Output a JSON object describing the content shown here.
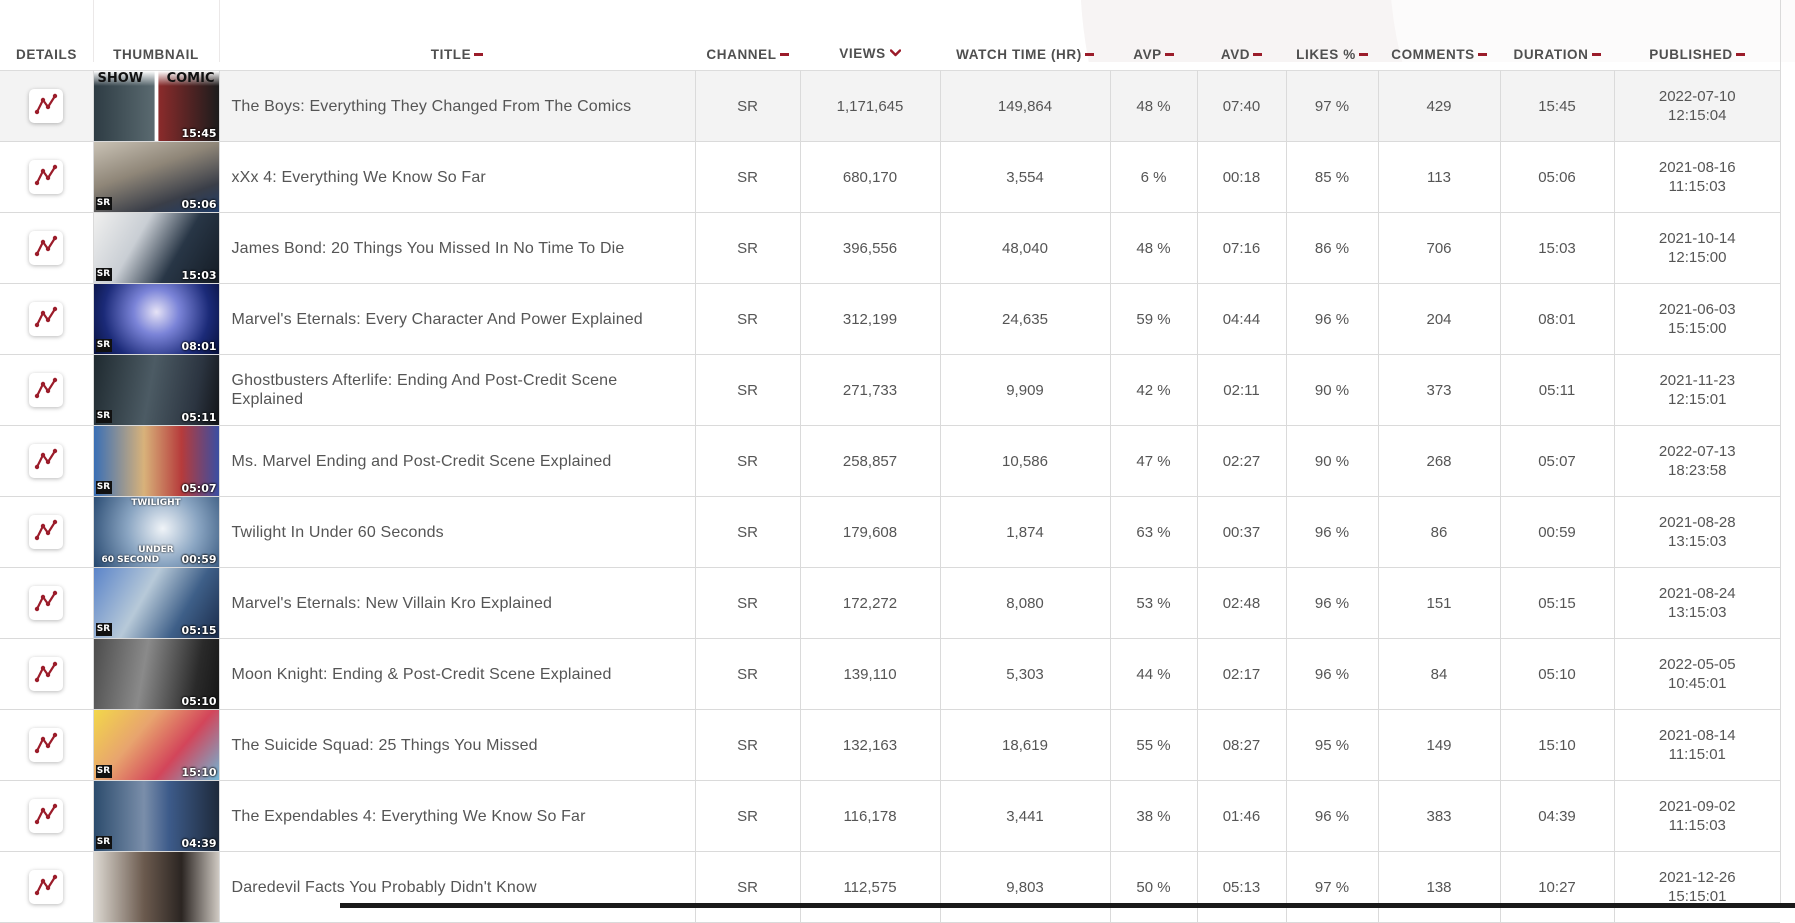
{
  "colors": {
    "accent": "#9b1c2a",
    "row_highlight": "#f3f3f3",
    "border": "#dadada"
  },
  "columns": {
    "details": "DETAILS",
    "thumbnail": "THUMBNAIL",
    "title": "TITLE",
    "channel": "CHANNEL",
    "views": "VIEWS",
    "watch_time": "WATCH TIME (HR)",
    "avp": "AVP",
    "avd": "AVD",
    "likes": "LIKES %",
    "comments": "COMMENTS",
    "duration": "DURATION",
    "published": "PUBLISHED"
  },
  "sort": {
    "column": "views",
    "direction": "descending",
    "icon": "chevron-down-icon"
  },
  "details_icon": "trend-chart-icon",
  "rows": [
    {
      "title": "The Boys: Everything They Changed From The Comics",
      "channel": "SR",
      "views": "1,171,645",
      "watch_time": "149,864",
      "avp": "48 %",
      "avd": "07:40",
      "likes": "97 %",
      "comments": "429",
      "duration": "15:45",
      "published_date": "2022-07-10",
      "published_time": "12:15:04",
      "thumb": {
        "dur": "15:45",
        "text_left": "SHOW",
        "text_right": "COMIC",
        "sr": "",
        "mid": ""
      }
    },
    {
      "title": "xXx 4: Everything We Know So Far",
      "channel": "SR",
      "views": "680,170",
      "watch_time": "3,554",
      "avp": "6 %",
      "avd": "00:18",
      "likes": "85 %",
      "comments": "113",
      "duration": "05:06",
      "published_date": "2021-08-16",
      "published_time": "11:15:03",
      "thumb": {
        "dur": "05:06",
        "text_left": "",
        "text_right": "",
        "sr": "SR",
        "mid": ""
      }
    },
    {
      "title": "James Bond: 20 Things You Missed In No Time To Die",
      "channel": "SR",
      "views": "396,556",
      "watch_time": "48,040",
      "avp": "48 %",
      "avd": "07:16",
      "likes": "86 %",
      "comments": "706",
      "duration": "15:03",
      "published_date": "2021-10-14",
      "published_time": "12:15:00",
      "thumb": {
        "dur": "15:03",
        "text_left": "",
        "text_right": "",
        "sr": "SR",
        "mid": ""
      }
    },
    {
      "title": "Marvel's Eternals: Every Character And Power Explained",
      "channel": "SR",
      "views": "312,199",
      "watch_time": "24,635",
      "avp": "59 %",
      "avd": "04:44",
      "likes": "96 %",
      "comments": "204",
      "duration": "08:01",
      "published_date": "2021-06-03",
      "published_time": "15:15:00",
      "thumb": {
        "dur": "08:01",
        "text_left": "",
        "text_right": "",
        "sr": "SR",
        "mid": ""
      }
    },
    {
      "title": "Ghostbusters Afterlife: Ending And Post-Credit Scene Explained",
      "channel": "SR",
      "views": "271,733",
      "watch_time": "9,909",
      "avp": "42 %",
      "avd": "02:11",
      "likes": "90 %",
      "comments": "373",
      "duration": "05:11",
      "published_date": "2021-11-23",
      "published_time": "12:15:01",
      "thumb": {
        "dur": "05:11",
        "text_left": "",
        "text_right": "",
        "sr": "SR",
        "mid": ""
      }
    },
    {
      "title": "Ms. Marvel Ending and Post-Credit Scene Explained",
      "channel": "SR",
      "views": "258,857",
      "watch_time": "10,586",
      "avp": "47 %",
      "avd": "02:27",
      "likes": "90 %",
      "comments": "268",
      "duration": "05:07",
      "published_date": "2022-07-13",
      "published_time": "18:23:58",
      "thumb": {
        "dur": "05:07",
        "text_left": "",
        "text_right": "",
        "sr": "SR",
        "mid": ""
      }
    },
    {
      "title": "Twilight In Under 60 Seconds",
      "channel": "SR",
      "views": "179,608",
      "watch_time": "1,874",
      "avp": "63 %",
      "avd": "00:37",
      "likes": "96 %",
      "comments": "86",
      "duration": "00:59",
      "published_date": "2021-08-28",
      "published_time": "13:15:03",
      "thumb": {
        "dur": "00:59",
        "text_left": "",
        "text_right": "",
        "sr": "",
        "mid": "TWILIGHT",
        "mid2": "UNDER",
        "mid3": "60 SECOND"
      }
    },
    {
      "title": "Marvel's Eternals: New Villain Kro Explained",
      "channel": "SR",
      "views": "172,272",
      "watch_time": "8,080",
      "avp": "53 %",
      "avd": "02:48",
      "likes": "96 %",
      "comments": "151",
      "duration": "05:15",
      "published_date": "2021-08-24",
      "published_time": "13:15:03",
      "thumb": {
        "dur": "05:15",
        "text_left": "",
        "text_right": "",
        "sr": "SR",
        "mid": ""
      }
    },
    {
      "title": "Moon Knight: Ending & Post-Credit Scene Explained",
      "channel": "SR",
      "views": "139,110",
      "watch_time": "5,303",
      "avp": "44 %",
      "avd": "02:17",
      "likes": "96 %",
      "comments": "84",
      "duration": "05:10",
      "published_date": "2022-05-05",
      "published_time": "10:45:01",
      "thumb": {
        "dur": "05:10",
        "text_left": "",
        "text_right": "",
        "sr": "",
        "mid": ""
      }
    },
    {
      "title": "The Suicide Squad: 25 Things You Missed",
      "channel": "SR",
      "views": "132,163",
      "watch_time": "18,619",
      "avp": "55 %",
      "avd": "08:27",
      "likes": "95 %",
      "comments": "149",
      "duration": "15:10",
      "published_date": "2021-08-14",
      "published_time": "11:15:01",
      "thumb": {
        "dur": "15:10",
        "text_left": "",
        "text_right": "",
        "sr": "SR",
        "mid": ""
      }
    },
    {
      "title": "The Expendables 4: Everything We Know So Far",
      "channel": "SR",
      "views": "116,178",
      "watch_time": "3,441",
      "avp": "38 %",
      "avd": "01:46",
      "likes": "96 %",
      "comments": "383",
      "duration": "04:39",
      "published_date": "2021-09-02",
      "published_time": "11:15:03",
      "thumb": {
        "dur": "04:39",
        "text_left": "",
        "text_right": "",
        "sr": "SR",
        "mid": ""
      }
    },
    {
      "title": "Daredevil Facts You Probably Didn't Know",
      "channel": "SR",
      "views": "112,575",
      "watch_time": "9,803",
      "avp": "50 %",
      "avd": "05:13",
      "likes": "97 %",
      "comments": "138",
      "duration": "10:27",
      "published_date": "2021-12-26",
      "published_time": "15:15:01",
      "thumb": {
        "dur": "",
        "text_left": "",
        "text_right": "",
        "sr": "",
        "mid": ""
      }
    }
  ]
}
